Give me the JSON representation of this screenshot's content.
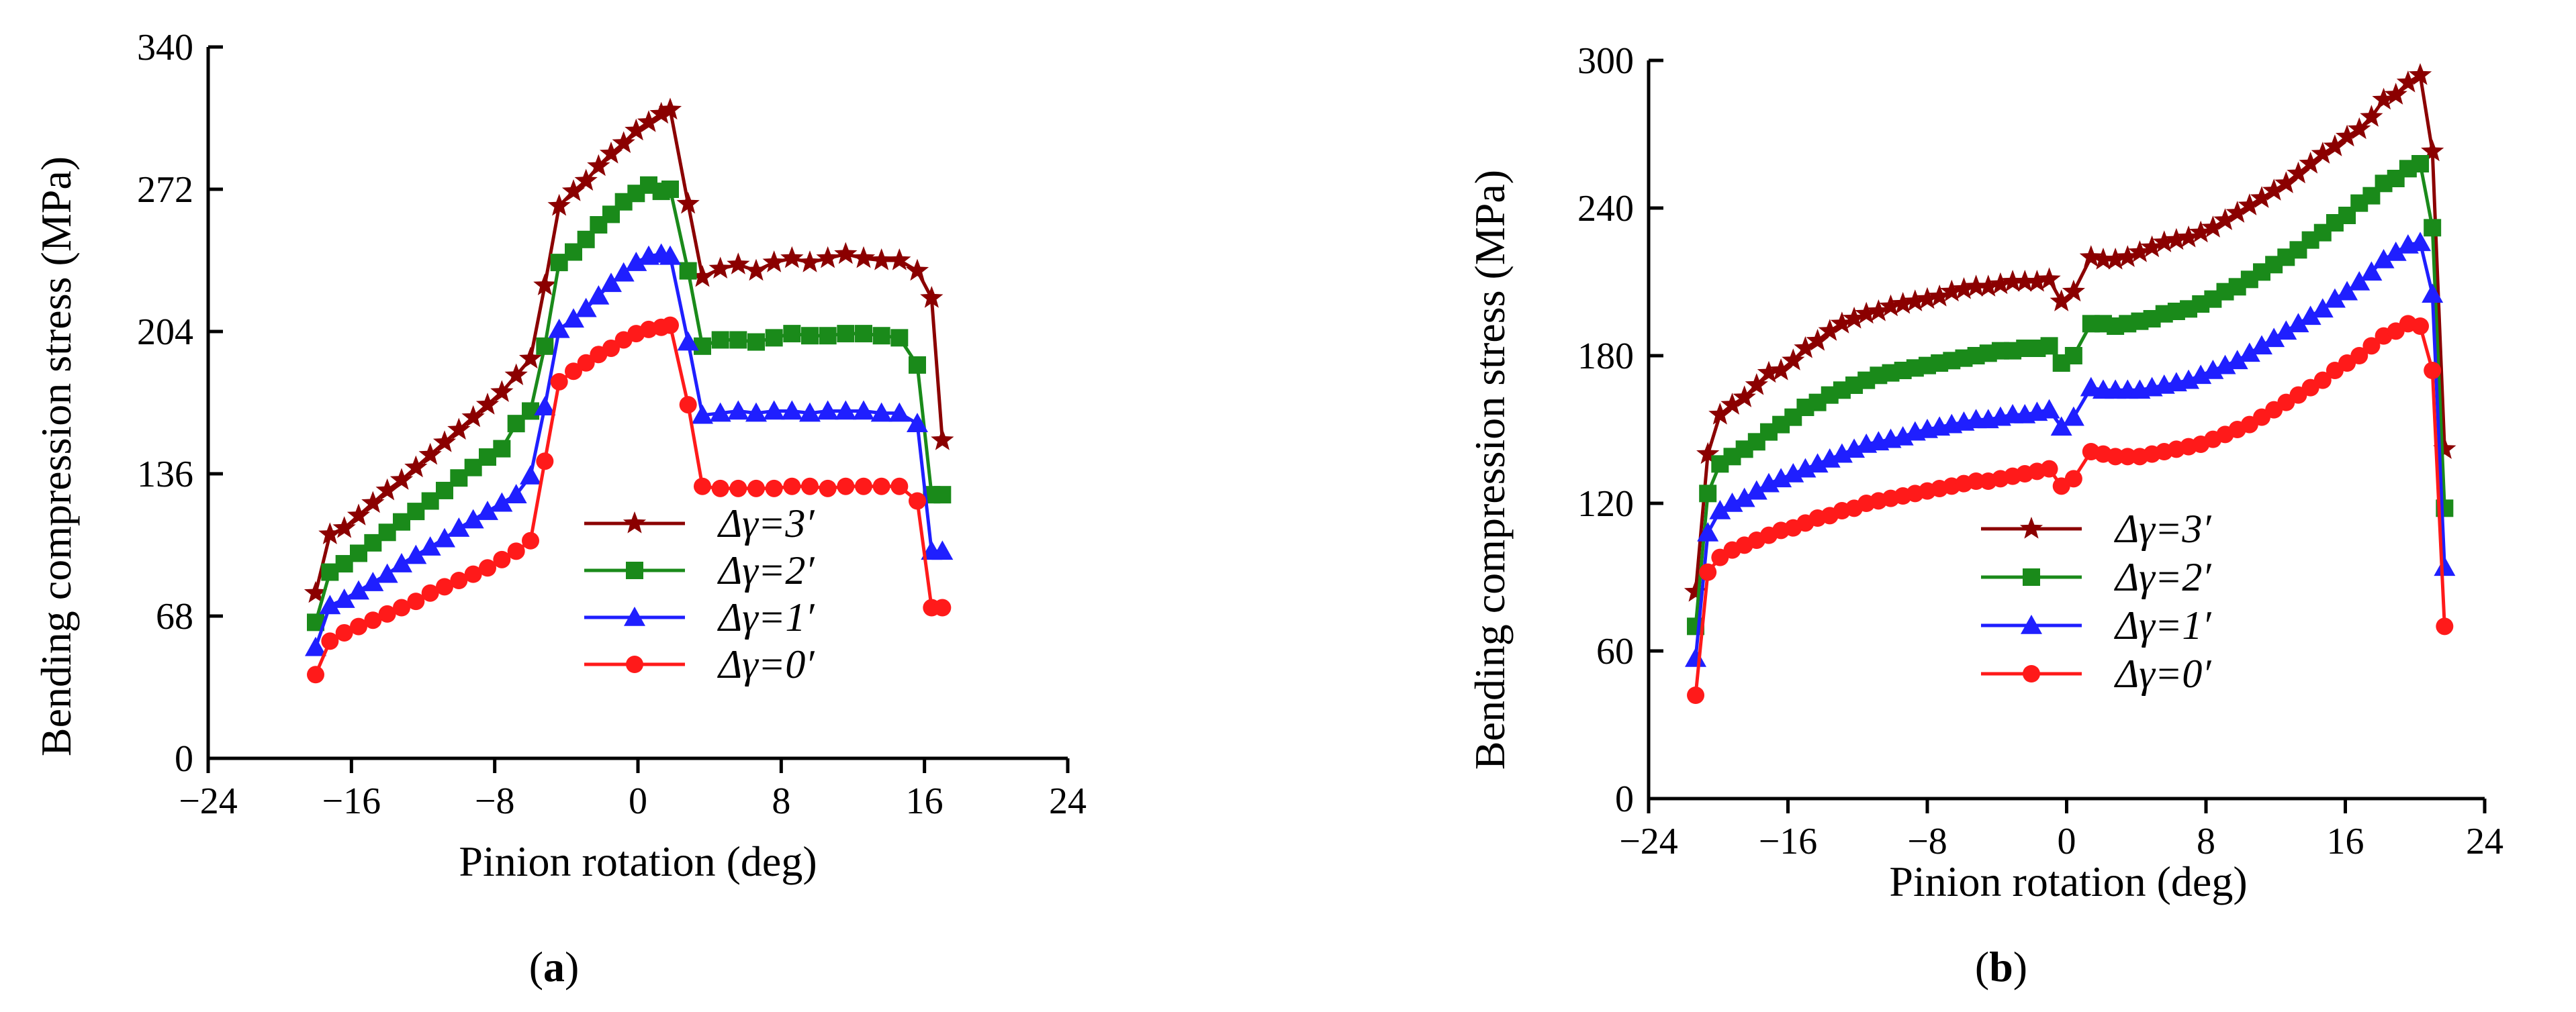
{
  "chart_data": [
    {
      "type": "line",
      "caption": {
        "open": "(",
        "letter": "a",
        "close": ")"
      },
      "xlabel": "Pinion rotation  (deg)",
      "ylabel": "Bending compression stress  (MPa)",
      "xlim": [
        -24,
        24
      ],
      "ylim": [
        0,
        340
      ],
      "xticks": [
        -24,
        -16,
        -8,
        0,
        8,
        16,
        24
      ],
      "yticks": [
        0,
        68,
        136,
        204,
        272,
        340
      ],
      "xtick_labels": [
        "−24",
        "−16",
        "−8",
        "0",
        "8",
        "16",
        "24"
      ],
      "ytick_labels": [
        "0",
        "68",
        "136",
        "204",
        "272",
        "340"
      ],
      "legend_position": "lower-center",
      "series": [
        {
          "name": "Δγ=3′",
          "color": "#8b0000",
          "marker": "star",
          "x": [
            -18,
            -17.2,
            -16.4,
            -15.6,
            -14.8,
            -14,
            -13.2,
            -12.4,
            -11.6,
            -10.8,
            -10,
            -9.2,
            -8.4,
            -7.6,
            -6.8,
            -6,
            -5.2,
            -4.4,
            -3.6,
            -2.9,
            -2.2,
            -1.5,
            -0.8,
            -0.1,
            0.6,
            1.3,
            1.8,
            2.8,
            3.6,
            4.6,
            5.6,
            6.6,
            7.6,
            8.6,
            9.6,
            10.6,
            11.6,
            12.6,
            13.6,
            14.6,
            15.6,
            16.4,
            17
          ],
          "values": [
            79,
            107,
            110,
            116,
            122,
            128,
            133,
            139,
            145,
            151,
            157,
            163,
            169,
            175,
            183,
            191,
            226,
            264,
            271,
            276,
            283,
            289,
            294,
            300,
            304,
            308,
            310,
            265,
            230,
            234,
            236,
            233,
            237,
            239,
            237,
            239,
            241,
            239,
            238,
            238,
            233,
            220,
            152
          ]
        },
        {
          "name": "Δγ=2′",
          "color": "#1a8a1a",
          "marker": "square",
          "x": [
            -18,
            -17.2,
            -16.4,
            -15.6,
            -14.8,
            -14,
            -13.2,
            -12.4,
            -11.6,
            -10.8,
            -10,
            -9.2,
            -8.4,
            -7.6,
            -6.8,
            -6,
            -5.2,
            -4.4,
            -3.6,
            -2.9,
            -2.2,
            -1.5,
            -0.8,
            -0.1,
            0.6,
            1.3,
            1.8,
            2.8,
            3.6,
            4.6,
            5.6,
            6.6,
            7.6,
            8.6,
            9.6,
            10.6,
            11.6,
            12.6,
            13.6,
            14.6,
            15.6,
            16.4,
            17
          ],
          "values": [
            65,
            89,
            93,
            98,
            103,
            108,
            113,
            118,
            123,
            128,
            134,
            139,
            144,
            148,
            160,
            166,
            197,
            237,
            242,
            248,
            255,
            260,
            266,
            270,
            274,
            271,
            272,
            233,
            197,
            200,
            200,
            199,
            201,
            203,
            202,
            202,
            203,
            203,
            202,
            201,
            188,
            126,
            126
          ]
        },
        {
          "name": "Δγ=1′",
          "color": "#1f1fff",
          "marker": "triangle",
          "x": [
            -18,
            -17.2,
            -16.4,
            -15.6,
            -14.8,
            -14,
            -13.2,
            -12.4,
            -11.6,
            -10.8,
            -10,
            -9.2,
            -8.4,
            -7.6,
            -6.8,
            -6,
            -5.2,
            -4.4,
            -3.6,
            -2.9,
            -2.2,
            -1.5,
            -0.8,
            -0.1,
            0.6,
            1.3,
            1.8,
            2.8,
            3.6,
            4.6,
            5.6,
            6.6,
            7.6,
            8.6,
            9.6,
            10.6,
            11.6,
            12.6,
            13.6,
            14.6,
            15.6,
            16.4,
            17
          ],
          "values": [
            53,
            73,
            76,
            80,
            84,
            88,
            93,
            97,
            101,
            105,
            110,
            114,
            118,
            122,
            126,
            135,
            168,
            205,
            210,
            215,
            221,
            227,
            232,
            237,
            240,
            241,
            240,
            199,
            164,
            165,
            166,
            165,
            166,
            166,
            165,
            166,
            166,
            166,
            165,
            165,
            160,
            99,
            99
          ]
        },
        {
          "name": "Δγ=0′",
          "color": "#ff1a1a",
          "marker": "circle",
          "x": [
            -18,
            -17.2,
            -16.4,
            -15.6,
            -14.8,
            -14,
            -13.2,
            -12.4,
            -11.6,
            -10.8,
            -10,
            -9.2,
            -8.4,
            -7.6,
            -6.8,
            -6,
            -5.2,
            -4.4,
            -3.6,
            -2.9,
            -2.2,
            -1.5,
            -0.8,
            -0.1,
            0.6,
            1.3,
            1.8,
            2.8,
            3.6,
            4.6,
            5.6,
            6.6,
            7.6,
            8.6,
            9.6,
            10.6,
            11.6,
            12.6,
            13.6,
            14.6,
            15.6,
            16.4,
            17
          ],
          "values": [
            40,
            56,
            60,
            63,
            66,
            69,
            72,
            75,
            79,
            82,
            85,
            88,
            91,
            95,
            99,
            104,
            142,
            180,
            185,
            189,
            193,
            196,
            200,
            203,
            205,
            206,
            207,
            169,
            130,
            129,
            129,
            129,
            129,
            130,
            130,
            129,
            130,
            130,
            130,
            130,
            123,
            72,
            72
          ]
        }
      ]
    },
    {
      "type": "line",
      "caption": {
        "open": "(",
        "letter": "b",
        "close": ")"
      },
      "xlabel": "Pinion rotation  (deg)",
      "ylabel": "Bending compression stress  (MPa)",
      "xlim": [
        -24,
        24
      ],
      "ylim": [
        0,
        300
      ],
      "xticks": [
        -24,
        -16,
        -8,
        0,
        8,
        16,
        24
      ],
      "yticks": [
        0,
        60,
        120,
        180,
        240,
        300
      ],
      "xtick_labels": [
        "−24",
        "−16",
        "−8",
        "0",
        "8",
        "16",
        "24"
      ],
      "ytick_labels": [
        "0",
        "60",
        "120",
        "180",
        "240",
        "300"
      ],
      "legend_position": "lower-center",
      "series": [
        {
          "name": "Δγ=3′",
          "color": "#8b0000",
          "marker": "star",
          "x": [
            -21.3,
            -20.6,
            -19.9,
            -19.2,
            -18.5,
            -17.8,
            -17.1,
            -16.4,
            -15.7,
            -15,
            -14.3,
            -13.6,
            -12.9,
            -12.2,
            -11.5,
            -10.8,
            -10.1,
            -9.4,
            -8.7,
            -8,
            -7.3,
            -6.6,
            -5.9,
            -5.2,
            -4.5,
            -3.8,
            -3.1,
            -2.4,
            -1.7,
            -1,
            -0.3,
            0.4,
            1.4,
            2.1,
            2.8,
            3.5,
            4.2,
            4.9,
            5.6,
            6.3,
            7,
            7.7,
            8.4,
            9.1,
            9.8,
            10.5,
            11.2,
            11.9,
            12.6,
            13.3,
            14,
            14.7,
            15.4,
            16.1,
            16.8,
            17.5,
            18.2,
            18.9,
            19.6,
            20.3,
            21,
            21.7
          ],
          "values": [
            84,
            140,
            156,
            160,
            163,
            168,
            173,
            174,
            178,
            183,
            186,
            190,
            193,
            195,
            197,
            198,
            200,
            201,
            202,
            203,
            204,
            206,
            207,
            208,
            208,
            209,
            210,
            210,
            210,
            211,
            202,
            206,
            220,
            219,
            219,
            220,
            222,
            224,
            226,
            227,
            228,
            230,
            232,
            235,
            238,
            241,
            244,
            247,
            250,
            254,
            258,
            262,
            265,
            269,
            272,
            277,
            284,
            286,
            291,
            294,
            263,
            142
          ]
        },
        {
          "name": "Δγ=2′",
          "color": "#1a8a1a",
          "marker": "square",
          "x": [
            -21.3,
            -20.6,
            -19.9,
            -19.2,
            -18.5,
            -17.8,
            -17.1,
            -16.4,
            -15.7,
            -15,
            -14.3,
            -13.6,
            -12.9,
            -12.2,
            -11.5,
            -10.8,
            -10.1,
            -9.4,
            -8.7,
            -8,
            -7.3,
            -6.6,
            -5.9,
            -5.2,
            -4.5,
            -3.8,
            -3.1,
            -2.4,
            -1.7,
            -1,
            -0.3,
            0.4,
            1.4,
            2.1,
            2.8,
            3.5,
            4.2,
            4.9,
            5.6,
            6.3,
            7,
            7.7,
            8.4,
            9.1,
            9.8,
            10.5,
            11.2,
            11.9,
            12.6,
            13.3,
            14,
            14.7,
            15.4,
            16.1,
            16.8,
            17.5,
            18.2,
            18.9,
            19.6,
            20.3,
            21,
            21.7
          ],
          "values": [
            70,
            124,
            136,
            139,
            142,
            145,
            149,
            152,
            155,
            159,
            161,
            164,
            166,
            168,
            170,
            172,
            173,
            174,
            175,
            176,
            177,
            178,
            179,
            180,
            181,
            182,
            182,
            183,
            183,
            184,
            177,
            180,
            193,
            193,
            192,
            193,
            194,
            195,
            197,
            198,
            199,
            201,
            203,
            206,
            208,
            211,
            214,
            217,
            220,
            223,
            227,
            230,
            234,
            237,
            242,
            245,
            250,
            252,
            256,
            258,
            232,
            118
          ]
        },
        {
          "name": "Δγ=1′",
          "color": "#1f1fff",
          "marker": "triangle",
          "x": [
            -21.3,
            -20.6,
            -19.9,
            -19.2,
            -18.5,
            -17.8,
            -17.1,
            -16.4,
            -15.7,
            -15,
            -14.3,
            -13.6,
            -12.9,
            -12.2,
            -11.5,
            -10.8,
            -10.1,
            -9.4,
            -8.7,
            -8,
            -7.3,
            -6.6,
            -5.9,
            -5.2,
            -4.5,
            -3.8,
            -3.1,
            -2.4,
            -1.7,
            -1,
            -0.3,
            0.4,
            1.4,
            2.1,
            2.8,
            3.5,
            4.2,
            4.9,
            5.6,
            6.3,
            7,
            7.7,
            8.4,
            9.1,
            9.8,
            10.5,
            11.2,
            11.9,
            12.6,
            13.3,
            14,
            14.7,
            15.4,
            16.1,
            16.8,
            17.5,
            18.2,
            18.9,
            19.6,
            20.3,
            21,
            21.7
          ],
          "values": [
            57,
            108,
            117,
            120,
            122,
            125,
            128,
            130,
            132,
            134,
            136,
            138,
            140,
            142,
            144,
            145,
            146,
            147,
            149,
            150,
            151,
            152,
            153,
            154,
            154,
            155,
            156,
            156,
            157,
            158,
            151,
            155,
            167,
            166,
            166,
            166,
            166,
            167,
            168,
            169,
            170,
            172,
            174,
            176,
            178,
            181,
            184,
            187,
            190,
            193,
            196,
            199,
            203,
            206,
            210,
            214,
            219,
            222,
            225,
            226,
            205,
            94
          ]
        },
        {
          "name": "Δγ=0′",
          "color": "#ff1a1a",
          "marker": "circle",
          "x": [
            -21.3,
            -20.6,
            -19.9,
            -19.2,
            -18.5,
            -17.8,
            -17.1,
            -16.4,
            -15.7,
            -15,
            -14.3,
            -13.6,
            -12.9,
            -12.2,
            -11.5,
            -10.8,
            -10.1,
            -9.4,
            -8.7,
            -8,
            -7.3,
            -6.6,
            -5.9,
            -5.2,
            -4.5,
            -3.8,
            -3.1,
            -2.4,
            -1.7,
            -1,
            -0.3,
            0.4,
            1.4,
            2.1,
            2.8,
            3.5,
            4.2,
            4.9,
            5.6,
            6.3,
            7,
            7.7,
            8.4,
            9.1,
            9.8,
            10.5,
            11.2,
            11.9,
            12.6,
            13.3,
            14,
            14.7,
            15.4,
            16.1,
            16.8,
            17.5,
            18.2,
            18.9,
            19.6,
            20.3,
            21,
            21.7
          ],
          "values": [
            42,
            92,
            98,
            101,
            103,
            105,
            107,
            109,
            110,
            112,
            114,
            115,
            117,
            118,
            120,
            121,
            122,
            123,
            124,
            125,
            126,
            127,
            128,
            129,
            129,
            130,
            131,
            132,
            133,
            134,
            127,
            130,
            141,
            140,
            139,
            139,
            139,
            140,
            141,
            142,
            143,
            144,
            146,
            148,
            150,
            152,
            155,
            158,
            161,
            164,
            167,
            170,
            174,
            177,
            180,
            184,
            188,
            190,
            193,
            192,
            174,
            70
          ]
        }
      ]
    }
  ]
}
